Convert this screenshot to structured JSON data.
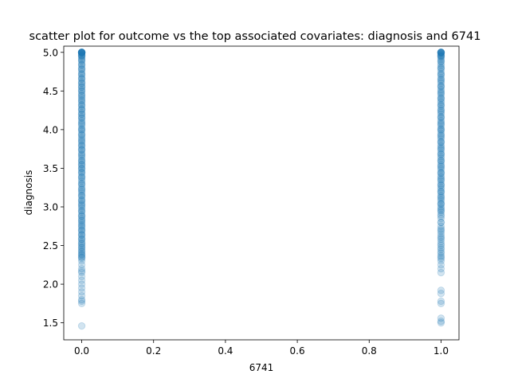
{
  "chart_data": {
    "type": "scatter",
    "title": "scatter plot for outcome vs the top associated covariates: diagnosis and 6741",
    "xlabel": "6741",
    "ylabel": "diagnosis",
    "xlim": [
      -0.05,
      1.05
    ],
    "ylim": [
      1.28,
      5.08
    ],
    "xticks": [
      0.0,
      0.2,
      0.4,
      0.6,
      0.8,
      1.0
    ],
    "xtick_labels": [
      "0.0",
      "0.2",
      "0.4",
      "0.6",
      "0.8",
      "1.0"
    ],
    "yticks": [
      1.5,
      2.0,
      2.5,
      3.0,
      3.5,
      4.0,
      4.5,
      5.0
    ],
    "ytick_labels": [
      "1.5",
      "2.0",
      "2.5",
      "3.0",
      "3.5",
      "4.0",
      "4.5",
      "5.0"
    ],
    "grid": false,
    "marker_color": "#1f77b4",
    "marker_alpha": 0.2,
    "series": [
      {
        "x": [
          0,
          0,
          0,
          0,
          0,
          0,
          0,
          0,
          0,
          0,
          0,
          0,
          0,
          0,
          0,
          0,
          0,
          0,
          0,
          0,
          0,
          0,
          0,
          0,
          0,
          0,
          0,
          0,
          0,
          0,
          0,
          0,
          0,
          0,
          0,
          0,
          0,
          0,
          0,
          0,
          0,
          0,
          0,
          0,
          0,
          0,
          0,
          0,
          0,
          0,
          0,
          0,
          0,
          0,
          0,
          0,
          0,
          0,
          0,
          0,
          0,
          0,
          0,
          0,
          0,
          0,
          0,
          0,
          0,
          0,
          0,
          0,
          0,
          0,
          0,
          0,
          0,
          0,
          0,
          0,
          0,
          0,
          0,
          0,
          0,
          0,
          0,
          0,
          0,
          0,
          0,
          0,
          0,
          0,
          0,
          0,
          0,
          0,
          0,
          0,
          0,
          0,
          0,
          0,
          0,
          0,
          0,
          0,
          0,
          0,
          0,
          0,
          0,
          0,
          0,
          0,
          0,
          0,
          0,
          0,
          0,
          0,
          0,
          0,
          0,
          0,
          0,
          0,
          0,
          0,
          0,
          0,
          0,
          0,
          0,
          0,
          0,
          0,
          0,
          0,
          0,
          0,
          0,
          0,
          0,
          0,
          0,
          0,
          0,
          0,
          0,
          0,
          0,
          0,
          0,
          0,
          0,
          0,
          0,
          0,
          0,
          0,
          0,
          0,
          0,
          0,
          0,
          0,
          0,
          0,
          0,
          0,
          0,
          0,
          0,
          0,
          0,
          0,
          0,
          0,
          1,
          1,
          1,
          1,
          1,
          1,
          1,
          1,
          1,
          1,
          1,
          1,
          1,
          1,
          1,
          1,
          1,
          1,
          1,
          1,
          1,
          1,
          1,
          1,
          1,
          1,
          1,
          1,
          1,
          1,
          1,
          1,
          1,
          1,
          1,
          1,
          1,
          1,
          1,
          1,
          1,
          1,
          1,
          1,
          1,
          1,
          1,
          1,
          1,
          1,
          1,
          1,
          1,
          1,
          1,
          1,
          1,
          1,
          1,
          1,
          1,
          1,
          1,
          1,
          1,
          1,
          1,
          1,
          1,
          1,
          1,
          1,
          1,
          1,
          1,
          1,
          1,
          1,
          1,
          1,
          1,
          1,
          1,
          1,
          1,
          1,
          1,
          1,
          1,
          1,
          1,
          1,
          1,
          1,
          1,
          1,
          1,
          1,
          1,
          1,
          1,
          1,
          1,
          1,
          1,
          1,
          1,
          1,
          1,
          1,
          1,
          1,
          1,
          1,
          1,
          1,
          1,
          1,
          1,
          1,
          1,
          1,
          1,
          1,
          1,
          1,
          1,
          1,
          1,
          1,
          1,
          1,
          1,
          1,
          1,
          1,
          1,
          1,
          1,
          1,
          1,
          1,
          1,
          1,
          1,
          1,
          1,
          1,
          1,
          1,
          1,
          1,
          1,
          1
        ],
        "y": [
          5.0,
          5.0,
          5.0,
          5.0,
          5.0,
          5.0,
          5.0,
          5.0,
          4.99,
          4.98,
          4.97,
          4.96,
          4.95,
          4.94,
          4.92,
          4.9,
          4.88,
          4.85,
          4.83,
          4.8,
          4.78,
          4.75,
          4.72,
          4.7,
          4.67,
          4.65,
          4.62,
          4.6,
          4.57,
          4.55,
          4.52,
          4.5,
          4.47,
          4.45,
          4.42,
          4.4,
          4.37,
          4.35,
          4.32,
          4.3,
          4.27,
          4.25,
          4.22,
          4.2,
          4.17,
          4.15,
          4.12,
          4.1,
          4.07,
          4.05,
          4.02,
          4.0,
          3.98,
          3.95,
          3.93,
          3.9,
          3.88,
          3.85,
          3.83,
          3.8,
          3.78,
          3.75,
          3.73,
          3.7,
          3.68,
          3.65,
          3.63,
          3.6,
          3.58,
          3.55,
          3.53,
          3.5,
          3.48,
          3.45,
          3.43,
          3.4,
          3.38,
          3.35,
          3.33,
          3.3,
          3.28,
          3.25,
          3.23,
          3.2,
          3.18,
          3.15,
          3.13,
          3.1,
          3.08,
          3.05,
          3.03,
          3.0,
          2.98,
          2.95,
          2.93,
          2.9,
          2.88,
          2.85,
          2.83,
          2.8,
          2.78,
          2.75,
          2.73,
          2.7,
          2.68,
          2.65,
          2.63,
          2.6,
          2.58,
          2.55,
          2.53,
          2.5,
          2.48,
          2.45,
          2.43,
          2.4,
          2.38,
          2.35,
          2.33,
          2.3,
          2.25,
          2.2,
          2.17,
          2.15,
          2.1,
          2.05,
          2.0,
          1.95,
          1.9,
          1.85,
          1.8,
          1.78,
          1.75,
          1.46,
          5.0,
          4.96,
          4.9,
          4.84,
          4.78,
          4.72,
          4.66,
          4.6,
          4.55,
          4.5,
          4.44,
          4.38,
          4.32,
          4.26,
          4.2,
          4.15,
          4.08,
          4.0,
          3.93,
          3.86,
          3.8,
          3.74,
          3.67,
          3.6,
          3.55,
          3.5,
          3.45,
          3.38,
          3.3,
          3.22,
          3.15,
          3.08,
          3.02,
          2.95,
          2.88,
          2.82,
          2.76,
          2.7,
          2.64,
          2.58,
          2.52,
          2.47,
          2.42,
          2.38,
          2.35,
          5.0,
          5.0,
          5.0,
          5.0,
          5.0,
          5.0,
          5.0,
          5.0,
          4.99,
          4.98,
          4.97,
          4.96,
          4.95,
          4.94,
          4.92,
          4.9,
          4.88,
          4.85,
          4.83,
          4.8,
          4.78,
          4.75,
          4.72,
          4.7,
          4.67,
          4.65,
          4.62,
          4.6,
          4.57,
          4.55,
          4.52,
          4.5,
          4.47,
          4.45,
          4.42,
          4.4,
          4.37,
          4.35,
          4.32,
          4.3,
          4.27,
          4.25,
          4.22,
          4.2,
          4.17,
          4.15,
          4.12,
          4.1,
          4.07,
          4.05,
          4.02,
          4.0,
          3.98,
          3.95,
          3.93,
          3.9,
          3.88,
          3.85,
          3.83,
          3.8,
          3.78,
          3.75,
          3.73,
          3.7,
          3.68,
          3.65,
          3.63,
          3.6,
          3.58,
          3.55,
          3.53,
          3.5,
          3.48,
          3.45,
          3.43,
          3.4,
          3.38,
          3.35,
          3.33,
          3.3,
          3.28,
          3.25,
          3.23,
          3.2,
          3.18,
          3.15,
          3.13,
          3.1,
          3.08,
          3.05,
          3.03,
          3.0,
          2.98,
          2.95,
          2.93,
          2.9,
          2.85,
          2.8,
          2.75,
          2.72,
          2.7,
          2.68,
          2.65,
          2.62,
          2.6,
          2.58,
          2.55,
          2.52,
          2.5,
          2.47,
          2.45,
          2.42,
          2.4,
          2.37,
          2.35,
          2.33,
          2.3,
          2.25,
          2.2,
          2.15,
          1.92,
          1.88,
          1.78,
          1.75,
          1.56,
          1.52,
          1.5,
          4.95,
          4.88,
          4.8,
          4.72,
          4.64,
          4.56,
          4.48,
          4.4,
          4.32,
          4.24,
          4.16,
          4.08,
          4.0,
          3.92,
          3.84,
          3.76,
          3.68,
          3.6,
          3.52,
          3.44,
          3.36,
          3.28,
          3.2,
          3.12,
          3.04,
          2.96,
          2.88,
          2.8
        ]
      }
    ]
  }
}
